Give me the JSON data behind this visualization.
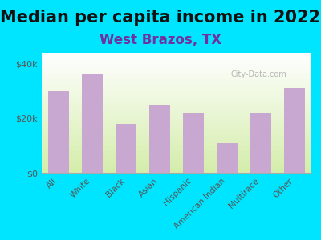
{
  "title": "Median per capita income in 2022",
  "subtitle": "West Brazos, TX",
  "categories": [
    "All",
    "White",
    "Black",
    "Asian",
    "Hispanic",
    "American Indian",
    "Multirace",
    "Other"
  ],
  "values": [
    30000,
    36000,
    18000,
    25000,
    22000,
    11000,
    22000,
    31000
  ],
  "bar_color": "#c8a8d0",
  "background_outer": "#00e5ff",
  "title_fontsize": 15,
  "subtitle_fontsize": 12,
  "subtitle_color": "#7030a0",
  "tick_color": "#555555",
  "ylim": [
    0,
    44000
  ],
  "yticks": [
    0,
    20000,
    40000
  ],
  "watermark": "City-Data.com"
}
